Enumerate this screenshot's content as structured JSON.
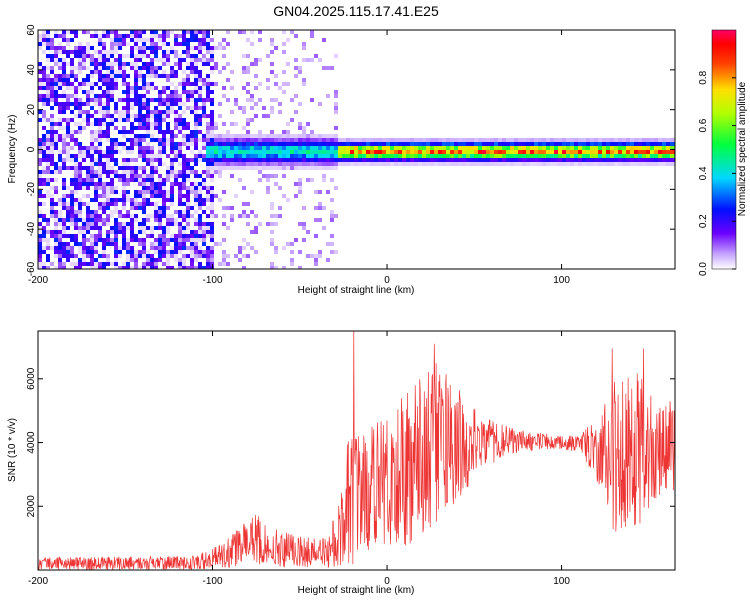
{
  "title": "GN04.2025.115.17.41.E25",
  "colors": {
    "snr_line": "#ee3333",
    "spectrogram_low": "#6a00ff",
    "axis": "#000000"
  },
  "chart_data": [
    {
      "type": "heatmap",
      "xlabel": "Height of straight line (km)",
      "ylabel": "Frequency (Hz)",
      "xlim": [
        -200,
        165
      ],
      "ylim": [
        -60,
        60
      ],
      "xticks": [
        "-200",
        "-100",
        "0",
        "100"
      ],
      "xtick_values": [
        -200,
        -100,
        0,
        100
      ],
      "yticks": [
        "-60",
        "-40",
        "-20",
        "0",
        "20",
        "40",
        "60"
      ],
      "ytick_values": [
        -60,
        -40,
        -20,
        0,
        20,
        40,
        60
      ],
      "colorbar": {
        "label": "Normalized spectral amplitude",
        "range": [
          0,
          1
        ],
        "ticks": [
          "0.0",
          "0.2",
          "0.4",
          "0.6",
          "0.8"
        ],
        "tick_values": [
          0.0,
          0.2,
          0.4,
          0.6,
          0.8
        ],
        "colormap": "rainbow (violet-blue-cyan-green-yellow-red-magenta)"
      },
      "regions": [
        {
          "x_range": [
            -200,
            -100
          ],
          "description_level": 0.15,
          "type": "broadband noise"
        },
        {
          "x_range": [
            -100,
            -30
          ],
          "description_level": 0.05,
          "type": "sparse noise"
        },
        {
          "x_range": [
            -105,
            165
          ],
          "freq_center": 0,
          "freq_halfwidth_hz": 5,
          "peak_level": 0.9,
          "type": "narrow tone near 0 Hz"
        }
      ]
    },
    {
      "type": "line",
      "xlabel": "Height of straight line (km)",
      "ylabel": "SNR (10 * v/v)",
      "xlim": [
        -200,
        165
      ],
      "ylim": [
        0,
        7500
      ],
      "xticks": [
        "-200",
        "-100",
        "0",
        "100"
      ],
      "xtick_values": [
        -200,
        -100,
        0,
        100
      ],
      "yticks": [
        "2000",
        "4000",
        "6000"
      ],
      "ytick_values": [
        2000,
        4000,
        6000
      ],
      "envelope": [
        {
          "x": -200,
          "lo": 0,
          "mean": 200,
          "hi": 400
        },
        {
          "x": -110,
          "lo": 0,
          "mean": 250,
          "hi": 450
        },
        {
          "x": -95,
          "lo": 50,
          "mean": 400,
          "hi": 800
        },
        {
          "x": -85,
          "lo": 100,
          "mean": 700,
          "hi": 1300
        },
        {
          "x": -75,
          "lo": 150,
          "mean": 900,
          "hi": 1800
        },
        {
          "x": -65,
          "lo": 100,
          "mean": 700,
          "hi": 1300
        },
        {
          "x": -50,
          "lo": 50,
          "mean": 550,
          "hi": 1050
        },
        {
          "x": -35,
          "lo": 50,
          "mean": 500,
          "hi": 1000
        },
        {
          "x": -28,
          "lo": 0,
          "mean": 700,
          "hi": 2000
        },
        {
          "x": -22,
          "lo": 100,
          "mean": 1500,
          "hi": 4500
        },
        {
          "x": -15,
          "lo": 300,
          "mean": 2200,
          "hi": 4200
        },
        {
          "x": 0,
          "lo": 500,
          "mean": 2800,
          "hi": 5000
        },
        {
          "x": 15,
          "lo": 800,
          "mean": 3400,
          "hi": 5800
        },
        {
          "x": 28,
          "lo": 1500,
          "mean": 4000,
          "hi": 6500
        },
        {
          "x": 40,
          "lo": 2000,
          "mean": 4200,
          "hi": 5800
        },
        {
          "x": 55,
          "lo": 3200,
          "mean": 4100,
          "hi": 4800
        },
        {
          "x": 75,
          "lo": 3700,
          "mean": 4050,
          "hi": 4400
        },
        {
          "x": 95,
          "lo": 3800,
          "mean": 4000,
          "hi": 4250
        },
        {
          "x": 110,
          "lo": 3700,
          "mean": 3950,
          "hi": 4200
        },
        {
          "x": 120,
          "lo": 2800,
          "mean": 3800,
          "hi": 4800
        },
        {
          "x": 130,
          "lo": 1000,
          "mean": 3700,
          "hi": 6000
        },
        {
          "x": 145,
          "lo": 1200,
          "mean": 3700,
          "hi": 6200
        },
        {
          "x": 155,
          "lo": 2200,
          "mean": 3800,
          "hi": 5200
        },
        {
          "x": 165,
          "lo": 2500,
          "mean": 4200,
          "hi": 5600
        }
      ],
      "spikes": [
        {
          "x": -19,
          "y": 7500
        },
        {
          "x": 27,
          "y": 7100
        },
        {
          "x": 129,
          "y": 6950
        },
        {
          "x": 147,
          "y": 6950
        }
      ]
    }
  ]
}
